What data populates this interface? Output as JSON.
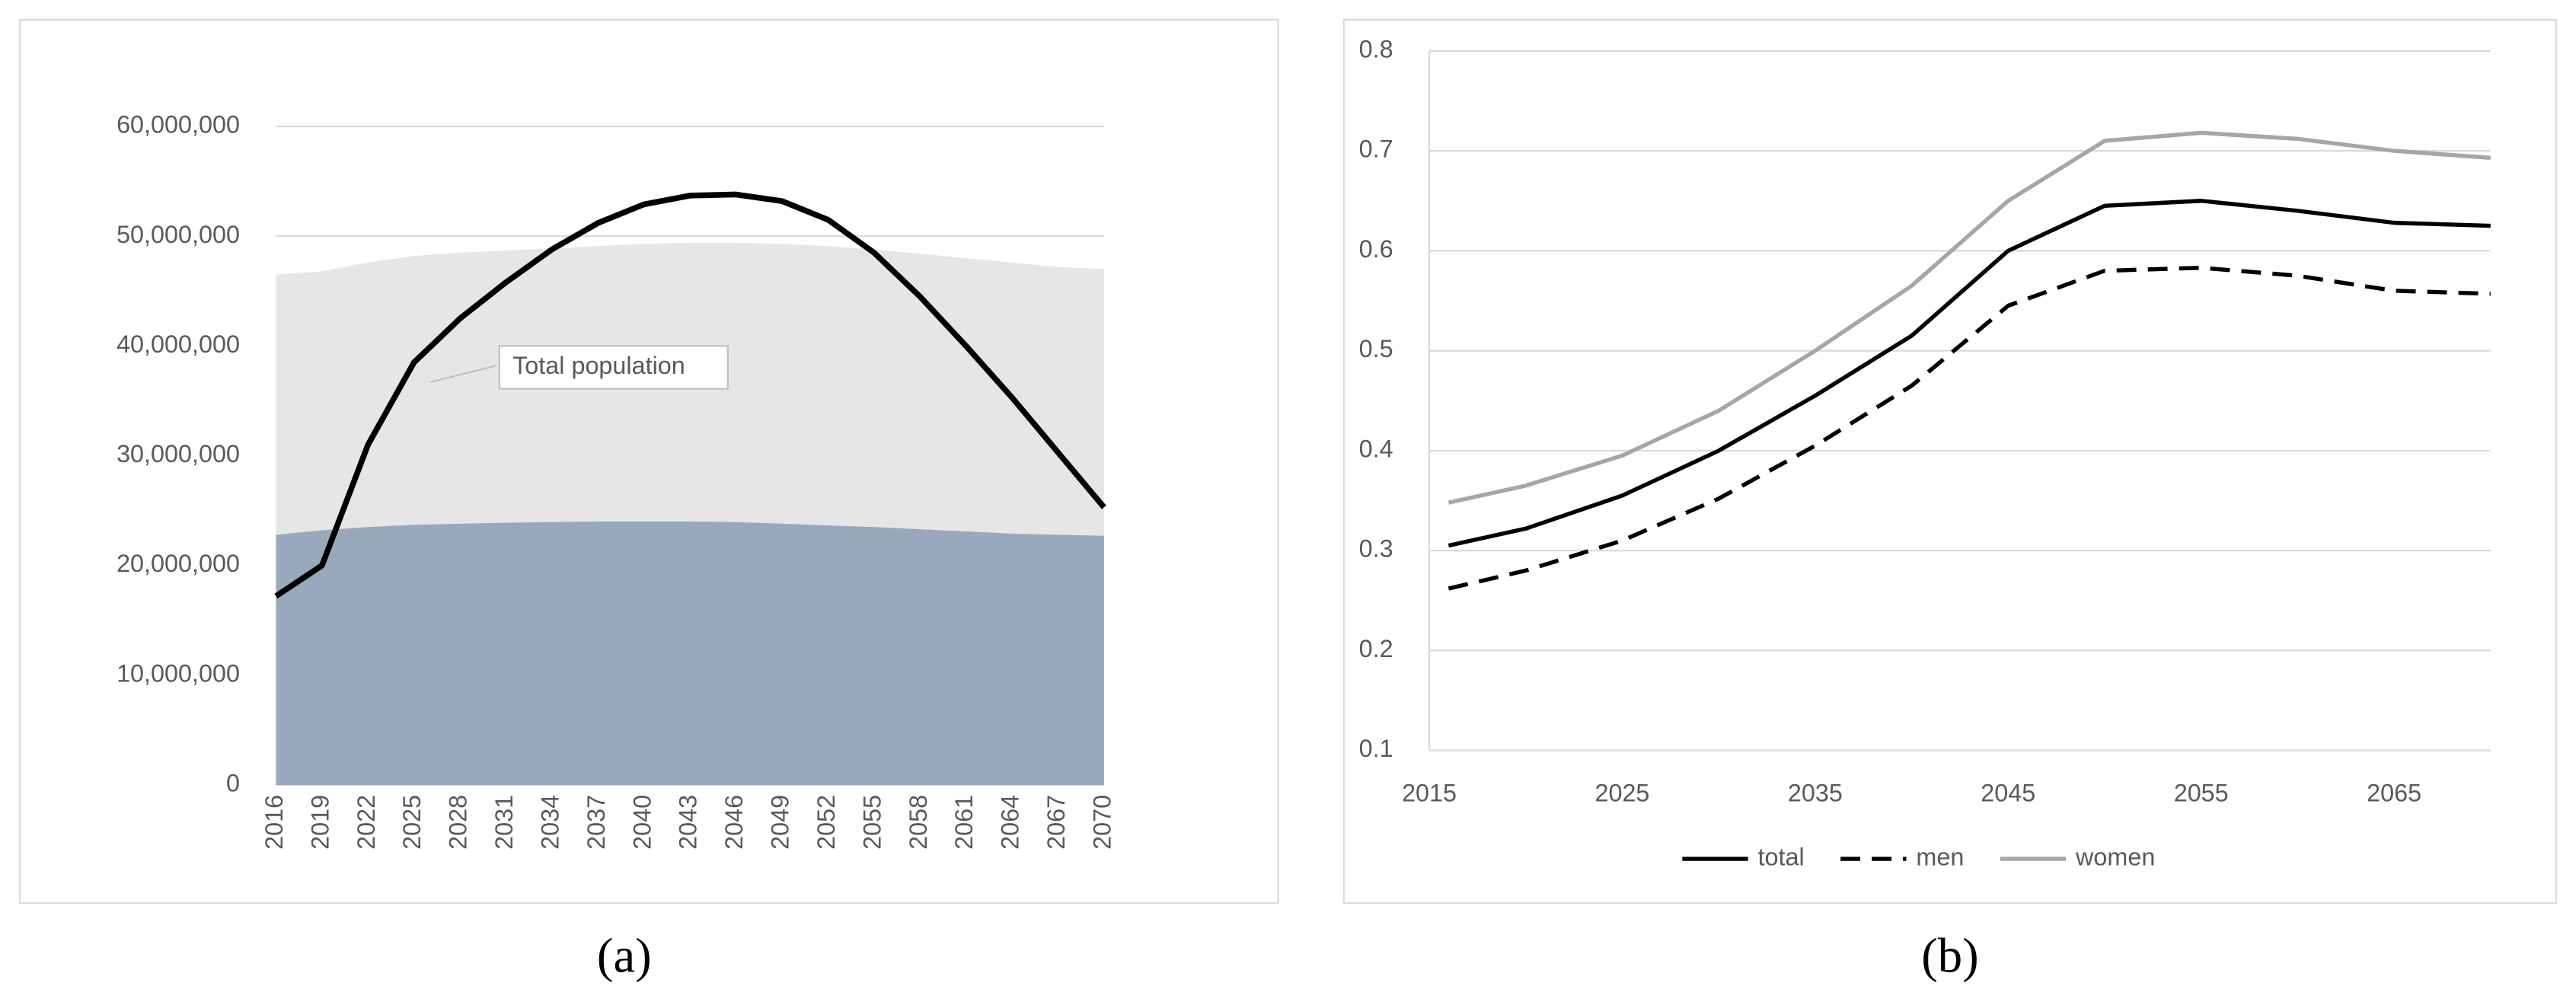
{
  "chart_data": [
    {
      "type": "area",
      "x": [
        2016,
        2019,
        2022,
        2025,
        2028,
        2031,
        2034,
        2037,
        2040,
        2043,
        2046,
        2049,
        2052,
        2055,
        2058,
        2061,
        2064,
        2067,
        2070
      ],
      "xlim": [
        2016,
        2070
      ],
      "xticks": [
        2016,
        2019,
        2022,
        2025,
        2028,
        2031,
        2034,
        2037,
        2040,
        2043,
        2046,
        2049,
        2052,
        2055,
        2058,
        2061,
        2064,
        2067,
        2070
      ],
      "ylim": [
        0,
        60000000
      ],
      "yticks": [
        {
          "value": 0,
          "label": "0"
        },
        {
          "value": 10000000,
          "label": "10,000,000"
        },
        {
          "value": 20000000,
          "label": "20,000,000"
        },
        {
          "value": 30000000,
          "label": "30,000,000"
        },
        {
          "value": 40000000,
          "label": "40,000,000"
        },
        {
          "value": 50000000,
          "label": "50,000,000"
        },
        {
          "value": 60000000,
          "label": "60,000,000"
        }
      ],
      "grid": true,
      "series": [
        {
          "mark": "area",
          "color": "#e6e6e6",
          "values": [
            46500000,
            46800000,
            47600000,
            48200000,
            48500000,
            48700000,
            48900000,
            49100000,
            49300000,
            49400000,
            49400000,
            49300000,
            49100000,
            48800000,
            48400000,
            48000000,
            47600000,
            47200000,
            47000000
          ]
        },
        {
          "mark": "area",
          "color": "#98a8bd",
          "values": [
            22800000,
            23200000,
            23500000,
            23700000,
            23800000,
            23900000,
            23950000,
            24000000,
            24000000,
            24000000,
            23950000,
            23800000,
            23650000,
            23500000,
            23300000,
            23100000,
            22900000,
            22800000,
            22700000
          ]
        },
        {
          "mark": "line",
          "color": "#000000",
          "annotation": "Total population",
          "values": [
            17200000,
            20000000,
            31000000,
            38500000,
            42500000,
            45800000,
            48800000,
            51200000,
            52900000,
            53700000,
            53800000,
            53200000,
            51500000,
            48500000,
            44500000,
            40000000,
            35300000,
            30300000,
            25300000
          ]
        }
      ],
      "panel": "(a)"
    },
    {
      "type": "line",
      "x": [
        2016,
        2020,
        2025,
        2030,
        2035,
        2040,
        2045,
        2050,
        2055,
        2060,
        2065,
        2070
      ],
      "xlim": [
        2015,
        2070
      ],
      "xticks": [
        2015,
        2025,
        2035,
        2045,
        2055,
        2065
      ],
      "ylim": [
        0.1,
        0.8
      ],
      "yticks": [
        0.1,
        0.2,
        0.3,
        0.4,
        0.5,
        0.6,
        0.7,
        0.8
      ],
      "grid": true,
      "legend": "bottom",
      "series": [
        {
          "name": "total",
          "color": "#000000",
          "dash": false,
          "values": [
            0.305,
            0.322,
            0.355,
            0.4,
            0.455,
            0.515,
            0.6,
            0.645,
            0.65,
            0.64,
            0.628,
            0.625
          ]
        },
        {
          "name": "men",
          "color": "#000000",
          "dash": true,
          "values": [
            0.262,
            0.28,
            0.31,
            0.352,
            0.405,
            0.465,
            0.545,
            0.58,
            0.583,
            0.575,
            0.56,
            0.557
          ]
        },
        {
          "name": "women",
          "color": "#a6a6a6",
          "dash": false,
          "values": [
            0.348,
            0.365,
            0.395,
            0.44,
            0.5,
            0.565,
            0.65,
            0.71,
            0.718,
            0.712,
            0.7,
            0.693
          ]
        }
      ],
      "panel": "(b)"
    }
  ]
}
